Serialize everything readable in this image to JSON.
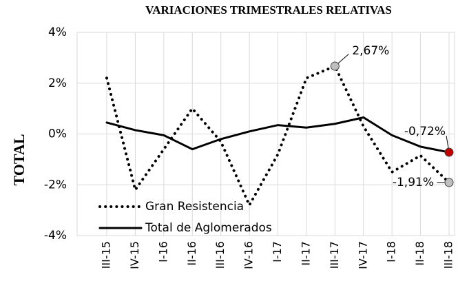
{
  "chart_data": {
    "type": "line",
    "title": "VARIACIONES TRIMESTRALES RELATIVAS",
    "y_label": "TOTAL",
    "categories": [
      "III-15",
      "IV-15",
      "I-16",
      "II-16",
      "III-16",
      "IV-16",
      "I-17",
      "II-17",
      "III-17",
      "IV-17",
      "I-18",
      "II-18",
      "III-18"
    ],
    "series": [
      {
        "name": "Gran Resistencia",
        "color": "#000000",
        "style": "dotted",
        "marker_color": "#bfbfbf",
        "values": [
          2.2,
          -2.2,
          -0.6,
          1.0,
          -0.3,
          -2.8,
          -0.8,
          2.2,
          2.67,
          0.3,
          -1.5,
          -0.85,
          -1.91
        ],
        "value_labels": [
          null,
          null,
          null,
          null,
          null,
          null,
          null,
          null,
          "2,67%",
          null,
          null,
          null,
          "-1,91%"
        ]
      },
      {
        "name": "Total de Aglomerados",
        "color": "#000000",
        "style": "solid",
        "marker_color": "#c00000",
        "values": [
          0.45,
          0.15,
          -0.05,
          -0.6,
          -0.2,
          0.1,
          0.35,
          0.25,
          0.4,
          0.65,
          -0.05,
          -0.5,
          -0.72
        ],
        "value_labels": [
          null,
          null,
          null,
          null,
          null,
          null,
          null,
          null,
          null,
          null,
          null,
          null,
          "-0,72%"
        ]
      }
    ],
    "ylim": [
      -4,
      4
    ],
    "yticks": [
      {
        "value": -4,
        "label": "-4%"
      },
      {
        "value": -2,
        "label": "-2%"
      },
      {
        "value": 0,
        "label": "0%"
      },
      {
        "value": 2,
        "label": "2%"
      },
      {
        "value": 4,
        "label": "4%"
      }
    ],
    "grid": true,
    "legend": "lower-left"
  }
}
